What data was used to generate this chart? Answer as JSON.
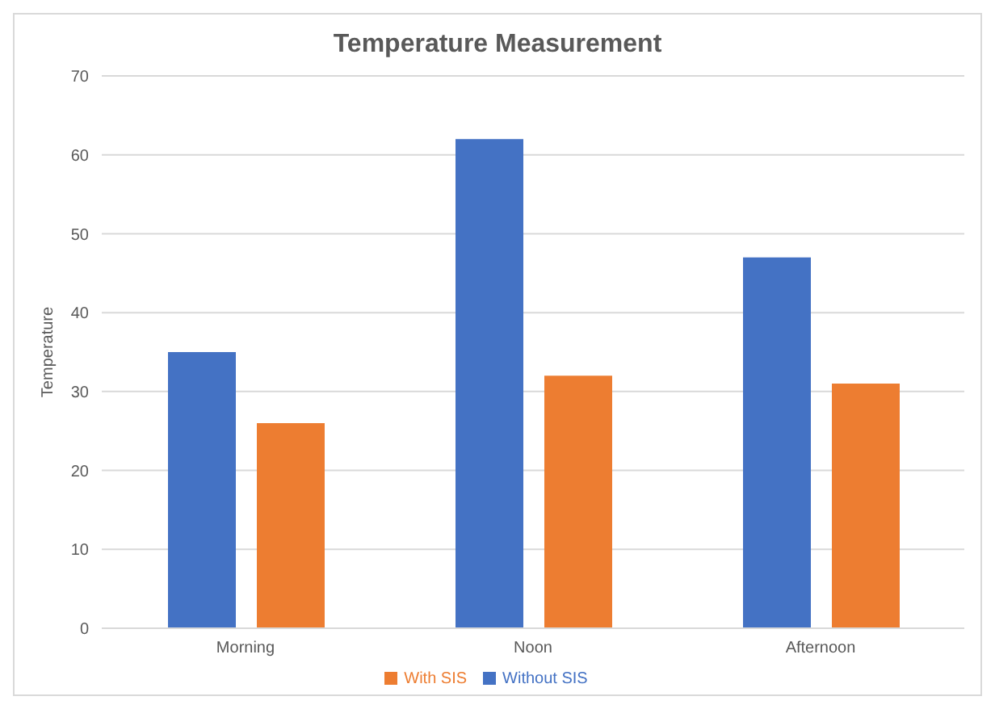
{
  "chart_data": {
    "type": "bar",
    "title": "Temperature Measurement",
    "ylabel": "Temperature",
    "categories": [
      "Morning",
      "Noon",
      "Afternoon"
    ],
    "series": [
      {
        "name": "Without SIS",
        "color": "#4472c4",
        "values": [
          35,
          62,
          47
        ]
      },
      {
        "name": "With SIS",
        "color": "#ed7d31",
        "values": [
          26,
          32,
          31
        ]
      }
    ],
    "ylim": [
      0,
      70
    ],
    "yticks": [
      0,
      10,
      20,
      30,
      40,
      50,
      60,
      70
    ],
    "grid": "y",
    "legend": "bottom"
  }
}
